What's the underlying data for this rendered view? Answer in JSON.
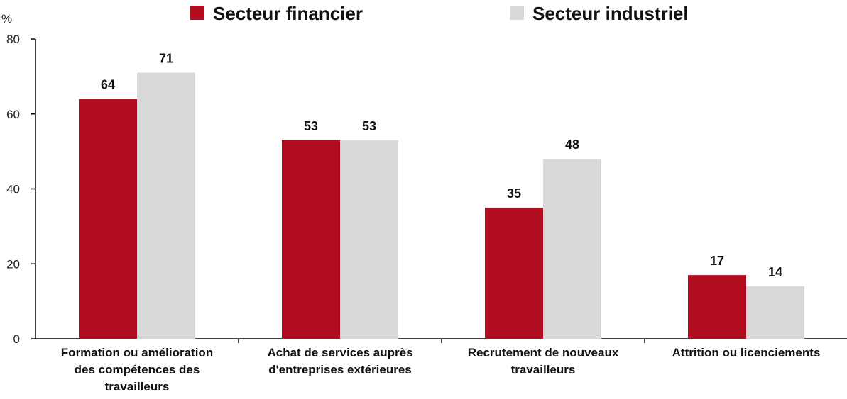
{
  "chart_data": {
    "type": "bar",
    "ylabel": "%",
    "ylim": [
      0,
      80
    ],
    "yticks": [
      0,
      20,
      40,
      60,
      80
    ],
    "categories": [
      [
        "Formation ou amélioration",
        "des compétences des",
        "travailleurs"
      ],
      [
        "Achat de services auprès",
        "d'entreprises extérieures"
      ],
      [
        "Recrutement de nouveaux",
        "travailleurs"
      ],
      [
        "Attrition ou licenciements"
      ]
    ],
    "series": [
      {
        "name": "Secteur financier",
        "color": "#b10f1f",
        "values": [
          64,
          53,
          35,
          17
        ]
      },
      {
        "name": "Secteur industriel",
        "color": "#d9d9d9",
        "values": [
          71,
          53,
          48,
          14
        ]
      }
    ],
    "legend_position": "top",
    "grid": false
  }
}
